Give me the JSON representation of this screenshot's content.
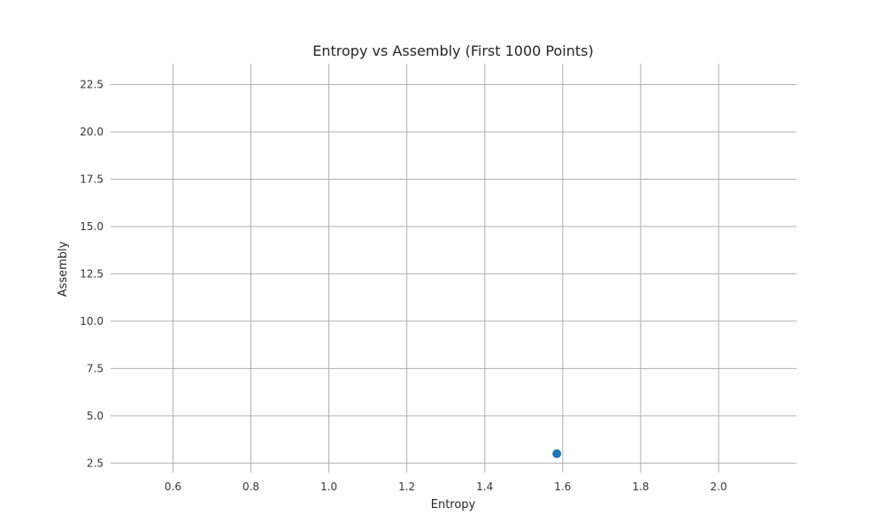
{
  "chart_data": {
    "type": "scatter",
    "title": "Entropy vs Assembly (First 1000 Points)",
    "xlabel": "Entropy",
    "ylabel": "Assembly",
    "xlim": [
      0.44,
      2.2
    ],
    "ylim": [
      2.0,
      23.6
    ],
    "xticks": [
      0.6,
      0.8,
      1.0,
      1.2,
      1.4,
      1.6,
      1.8,
      2.0
    ],
    "yticks": [
      2.5,
      5.0,
      7.5,
      10.0,
      12.5,
      15.0,
      17.5,
      20.0,
      22.5
    ],
    "xtick_labels": [
      "0.6",
      "0.8",
      "1.0",
      "1.2",
      "1.4",
      "1.6",
      "1.8",
      "2.0"
    ],
    "ytick_labels": [
      "2.5",
      "5.0",
      "7.5",
      "10.0",
      "12.5",
      "15.0",
      "17.5",
      "20.0",
      "22.5"
    ],
    "grid": true,
    "series": [
      {
        "points": [
          {
            "x": 1.585,
            "y": 3.0
          }
        ],
        "color": "#1f77b4"
      }
    ],
    "grid_color": "#b0b0b0"
  }
}
